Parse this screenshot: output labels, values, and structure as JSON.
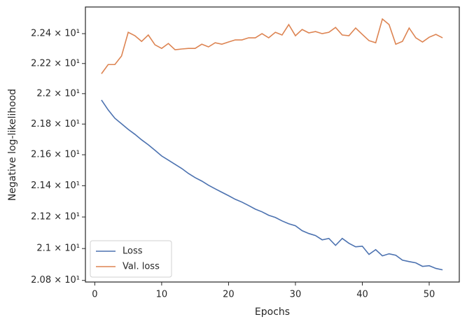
{
  "chart_data": {
    "type": "line",
    "xlabel": "Epochs",
    "ylabel": "Negative log-likelihood",
    "x": [
      1,
      2,
      3,
      4,
      5,
      6,
      7,
      8,
      9,
      10,
      11,
      12,
      13,
      14,
      15,
      16,
      17,
      18,
      19,
      20,
      21,
      22,
      23,
      24,
      25,
      26,
      27,
      28,
      29,
      30,
      31,
      32,
      33,
      34,
      35,
      36,
      37,
      38,
      39,
      40,
      41,
      42,
      43,
      44,
      45,
      46,
      47,
      48,
      49,
      50,
      51,
      52
    ],
    "series": [
      {
        "name": "Loss",
        "color": "#4c72b0",
        "values": [
          21.958,
          21.893,
          21.838,
          21.802,
          21.765,
          21.733,
          21.697,
          21.665,
          21.629,
          21.592,
          21.565,
          21.538,
          21.511,
          21.479,
          21.452,
          21.43,
          21.403,
          21.38,
          21.358,
          21.336,
          21.313,
          21.295,
          21.273,
          21.25,
          21.233,
          21.211,
          21.197,
          21.175,
          21.157,
          21.144,
          21.113,
          21.095,
          21.082,
          21.055,
          21.064,
          21.02,
          21.064,
          21.033,
          21.011,
          21.015,
          20.963,
          20.993,
          20.954,
          20.967,
          20.958,
          20.927,
          20.918,
          20.91,
          20.888,
          20.892,
          20.875,
          20.866
        ]
      },
      {
        "name": "Val. loss",
        "color": "#dd8452",
        "values": [
          22.132,
          22.193,
          22.193,
          22.25,
          22.409,
          22.386,
          22.348,
          22.391,
          22.325,
          22.301,
          22.334,
          22.292,
          22.297,
          22.301,
          22.301,
          22.329,
          22.311,
          22.339,
          22.329,
          22.344,
          22.358,
          22.358,
          22.372,
          22.372,
          22.4,
          22.372,
          22.409,
          22.391,
          22.461,
          22.386,
          22.428,
          22.405,
          22.414,
          22.4,
          22.409,
          22.442,
          22.391,
          22.386,
          22.438,
          22.395,
          22.353,
          22.339,
          22.499,
          22.461,
          22.329,
          22.348,
          22.438,
          22.372,
          22.344,
          22.376,
          22.395,
          22.372
        ]
      }
    ],
    "xlim": [
      -1.4,
      54.5
    ],
    "xticks": [
      0,
      10,
      20,
      30,
      40,
      50
    ],
    "ylim": [
      20.79,
      22.58
    ],
    "yscale": "log",
    "yticks": [
      {
        "value": 20.8,
        "label": "2.08 × 10¹"
      },
      {
        "value": 21.0,
        "label": "2.1 × 10¹"
      },
      {
        "value": 21.2,
        "label": "2.12 × 10¹"
      },
      {
        "value": 21.4,
        "label": "2.14 × 10¹"
      },
      {
        "value": 21.6,
        "label": "2.16 × 10¹"
      },
      {
        "value": 21.8,
        "label": "2.18 × 10¹"
      },
      {
        "value": 22.0,
        "label": "2.2 × 10¹"
      },
      {
        "value": 22.2,
        "label": "2.22 × 10¹"
      },
      {
        "value": 22.4,
        "label": "2.24 × 10¹"
      }
    ],
    "legend": "lower left"
  }
}
